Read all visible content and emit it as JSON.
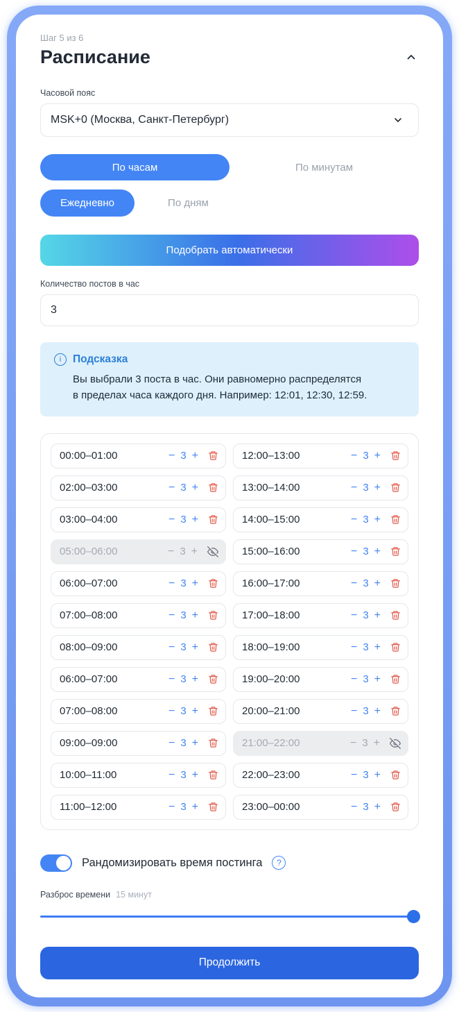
{
  "step_label": "Шаг 5 из 6",
  "title": "Расписание",
  "timezone": {
    "label": "Часовой пояс",
    "value": "MSK+0 (Москва, Санкт-Петербург)"
  },
  "mode_tabs": {
    "by_hours": "По часам",
    "by_minutes": "По минутам",
    "active": "По часам"
  },
  "day_tabs": {
    "daily": "Ежедневно",
    "by_days": "По дням",
    "active": "Ежедневно"
  },
  "auto_button_label": "Подобрать автоматически",
  "posts_per_hour": {
    "label": "Количество постов в час",
    "value": "3"
  },
  "hint": {
    "title": "Подсказка",
    "line1": "Вы выбрали 3 поста в час. Они равномерно распределятся",
    "line2": "в пределах часа каждого дня. Например: 12:01, 12:30, 12:59."
  },
  "slots": {
    "left": [
      {
        "time": "00:00–01:00",
        "count": "3",
        "disabled": false
      },
      {
        "time": "02:00–03:00",
        "count": "3",
        "disabled": false
      },
      {
        "time": "03:00–04:00",
        "count": "3",
        "disabled": false
      },
      {
        "time": "05:00–06:00",
        "count": "3",
        "disabled": true
      },
      {
        "time": "06:00–07:00",
        "count": "3",
        "disabled": false
      },
      {
        "time": "07:00–08:00",
        "count": "3",
        "disabled": false
      },
      {
        "time": "08:00–09:00",
        "count": "3",
        "disabled": false
      },
      {
        "time": "06:00–07:00",
        "count": "3",
        "disabled": false
      },
      {
        "time": "07:00–08:00",
        "count": "3",
        "disabled": false
      },
      {
        "time": "09:00–09:00",
        "count": "3",
        "disabled": false
      },
      {
        "time": "10:00–11:00",
        "count": "3",
        "disabled": false
      },
      {
        "time": "11:00–12:00",
        "count": "3",
        "disabled": false
      }
    ],
    "right": [
      {
        "time": "12:00–13:00",
        "count": "3",
        "disabled": false
      },
      {
        "time": "13:00–14:00",
        "count": "3",
        "disabled": false
      },
      {
        "time": "14:00–15:00",
        "count": "3",
        "disabled": false
      },
      {
        "time": "15:00–16:00",
        "count": "3",
        "disabled": false
      },
      {
        "time": "16:00–17:00",
        "count": "3",
        "disabled": false
      },
      {
        "time": "17:00–18:00",
        "count": "3",
        "disabled": false
      },
      {
        "time": "18:00–19:00",
        "count": "3",
        "disabled": false
      },
      {
        "time": "19:00–20:00",
        "count": "3",
        "disabled": false
      },
      {
        "time": "20:00–21:00",
        "count": "3",
        "disabled": false
      },
      {
        "time": "21:00–22:00",
        "count": "3",
        "disabled": true
      },
      {
        "time": "22:00–23:00",
        "count": "3",
        "disabled": false
      },
      {
        "time": "23:00–00:00",
        "count": "3",
        "disabled": false
      }
    ]
  },
  "randomize": {
    "label": "Рандомизировать время постинга",
    "enabled": true
  },
  "spread": {
    "label": "Разброс времени",
    "value": "15 минут",
    "percent": 100
  },
  "continue_button_label": "Продолжить",
  "icons": {
    "header_collapse": "chevron-up",
    "timezone": "chevron-down",
    "hint": "info-circle",
    "slot_delete": "trash",
    "slot_hidden": "eye-off",
    "randomize_help": "question-circle"
  },
  "colors": {
    "accent": "#4385f5",
    "continue": "#2b66e0",
    "frame": "#7ba0f3",
    "danger": "#e25c4e",
    "hint_bg": "#def0fb",
    "hint_title": "#2b7fd9",
    "disabled_bg": "#ecedef",
    "gradient": [
      "#55d7e6",
      "#3a6fe8",
      "#ad4eea"
    ]
  }
}
